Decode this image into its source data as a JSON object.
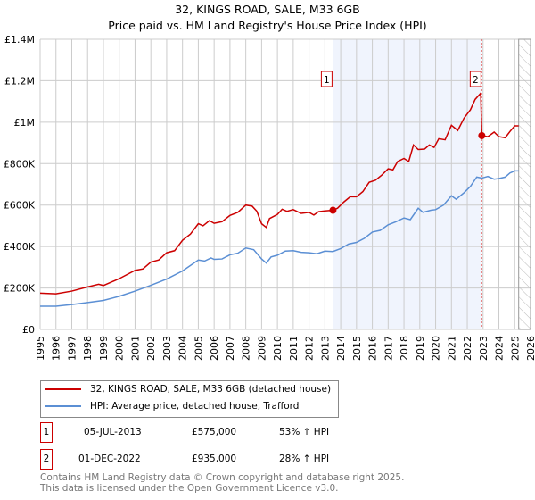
{
  "chart_data": {
    "type": "line",
    "title": "32, KINGS ROAD, SALE, M33 6GB",
    "subtitle": "Price paid vs. HM Land Registry's House Price Index (HPI)",
    "xlim": [
      1995,
      2026
    ],
    "ylim": [
      0,
      1400000
    ],
    "y_ticks": [
      {
        "v": 0,
        "l": "£0"
      },
      {
        "v": 200000,
        "l": "£200K"
      },
      {
        "v": 400000,
        "l": "£400K"
      },
      {
        "v": 600000,
        "l": "£600K"
      },
      {
        "v": 800000,
        "l": "£800K"
      },
      {
        "v": 1000000,
        "l": "£1M"
      },
      {
        "v": 1200000,
        "l": "£1.2M"
      },
      {
        "v": 1400000,
        "l": "£1.4M"
      }
    ],
    "x_ticks": [
      "1995",
      "1996",
      "1997",
      "1998",
      "1999",
      "2000",
      "2001",
      "2002",
      "2003",
      "2004",
      "2005",
      "2006",
      "2007",
      "2008",
      "2009",
      "2010",
      "2011",
      "2012",
      "2013",
      "2014",
      "2015",
      "2016",
      "2017",
      "2018",
      "2019",
      "2020",
      "2021",
      "2022",
      "2023",
      "2024",
      "2025",
      "2026"
    ],
    "grid": true,
    "shaded_range": [
      2013.51,
      2022.92
    ],
    "forecast_hatch_from": 2025.25,
    "series": [
      {
        "name": "32, KINGS ROAD, SALE, M33 6GB (detached house)",
        "color": "#cc0000",
        "points": [
          [
            1995,
            175000
          ],
          [
            1996,
            172000
          ],
          [
            1997,
            185000
          ],
          [
            1998,
            205000
          ],
          [
            1998.7,
            218000
          ],
          [
            1999,
            212000
          ],
          [
            2000,
            245000
          ],
          [
            2001,
            285000
          ],
          [
            2001.5,
            292000
          ],
          [
            2002,
            325000
          ],
          [
            2002.5,
            335000
          ],
          [
            2003,
            370000
          ],
          [
            2003.5,
            380000
          ],
          [
            2004,
            430000
          ],
          [
            2004.5,
            460000
          ],
          [
            2005,
            510000
          ],
          [
            2005.3,
            500000
          ],
          [
            2005.7,
            525000
          ],
          [
            2006,
            512000
          ],
          [
            2006.5,
            520000
          ],
          [
            2007,
            550000
          ],
          [
            2007.5,
            565000
          ],
          [
            2008,
            600000
          ],
          [
            2008.4,
            595000
          ],
          [
            2008.7,
            570000
          ],
          [
            2009.0,
            510000
          ],
          [
            2009.3,
            492000
          ],
          [
            2009.5,
            535000
          ],
          [
            2010,
            555000
          ],
          [
            2010.3,
            580000
          ],
          [
            2010.6,
            570000
          ],
          [
            2011,
            578000
          ],
          [
            2011.5,
            560000
          ],
          [
            2012,
            565000
          ],
          [
            2012.3,
            552000
          ],
          [
            2012.6,
            568000
          ],
          [
            2013,
            572000
          ],
          [
            2013.51,
            575000
          ],
          [
            2013.8,
            585000
          ],
          [
            2014.2,
            615000
          ],
          [
            2014.6,
            640000
          ],
          [
            2015,
            640000
          ],
          [
            2015.4,
            665000
          ],
          [
            2015.8,
            710000
          ],
          [
            2016.2,
            720000
          ],
          [
            2016.6,
            745000
          ],
          [
            2017,
            775000
          ],
          [
            2017.3,
            770000
          ],
          [
            2017.6,
            810000
          ],
          [
            2018,
            825000
          ],
          [
            2018.3,
            810000
          ],
          [
            2018.6,
            890000
          ],
          [
            2018.9,
            868000
          ],
          [
            2019.3,
            870000
          ],
          [
            2019.6,
            890000
          ],
          [
            2019.9,
            878000
          ],
          [
            2020.2,
            920000
          ],
          [
            2020.6,
            915000
          ],
          [
            2021.0,
            985000
          ],
          [
            2021.4,
            960000
          ],
          [
            2021.8,
            1020000
          ],
          [
            2022.2,
            1060000
          ],
          [
            2022.5,
            1110000
          ],
          [
            2022.85,
            1140000
          ],
          [
            2022.92,
            935000
          ],
          [
            2023.3,
            930000
          ],
          [
            2023.7,
            952000
          ],
          [
            2024.0,
            930000
          ],
          [
            2024.4,
            925000
          ],
          [
            2024.7,
            955000
          ],
          [
            2025.0,
            982000
          ],
          [
            2025.25,
            982000
          ]
        ]
      },
      {
        "name": "HPI: Average price, detached house, Trafford",
        "color": "#5b8fd4",
        "points": [
          [
            1995,
            112000
          ],
          [
            1996,
            112000
          ],
          [
            1997,
            120000
          ],
          [
            1998,
            130000
          ],
          [
            1999,
            140000
          ],
          [
            2000,
            160000
          ],
          [
            2001,
            185000
          ],
          [
            2002,
            213000
          ],
          [
            2003,
            243000
          ],
          [
            2004,
            282000
          ],
          [
            2005,
            335000
          ],
          [
            2005.4,
            330000
          ],
          [
            2005.8,
            345000
          ],
          [
            2006,
            338000
          ],
          [
            2006.5,
            340000
          ],
          [
            2007,
            360000
          ],
          [
            2007.5,
            368000
          ],
          [
            2008,
            393000
          ],
          [
            2008.5,
            385000
          ],
          [
            2009.0,
            340000
          ],
          [
            2009.3,
            320000
          ],
          [
            2009.6,
            350000
          ],
          [
            2010,
            358000
          ],
          [
            2010.5,
            378000
          ],
          [
            2011,
            380000
          ],
          [
            2011.5,
            372000
          ],
          [
            2012,
            370000
          ],
          [
            2012.5,
            365000
          ],
          [
            2013,
            378000
          ],
          [
            2013.51,
            376000
          ],
          [
            2014,
            390000
          ],
          [
            2014.5,
            412000
          ],
          [
            2015,
            420000
          ],
          [
            2015.5,
            440000
          ],
          [
            2016,
            470000
          ],
          [
            2016.5,
            478000
          ],
          [
            2017,
            505000
          ],
          [
            2017.5,
            520000
          ],
          [
            2018,
            538000
          ],
          [
            2018.4,
            530000
          ],
          [
            2018.9,
            585000
          ],
          [
            2019.2,
            565000
          ],
          [
            2019.7,
            575000
          ],
          [
            2020,
            578000
          ],
          [
            2020.5,
            600000
          ],
          [
            2021,
            645000
          ],
          [
            2021.3,
            628000
          ],
          [
            2021.8,
            660000
          ],
          [
            2022.2,
            690000
          ],
          [
            2022.6,
            735000
          ],
          [
            2022.92,
            730000
          ],
          [
            2023.3,
            738000
          ],
          [
            2023.7,
            725000
          ],
          [
            2024,
            728000
          ],
          [
            2024.4,
            735000
          ],
          [
            2024.7,
            755000
          ],
          [
            2025.0,
            765000
          ],
          [
            2025.25,
            765000
          ]
        ]
      }
    ],
    "sales": [
      {
        "n": "1",
        "x": 2013.51,
        "y": 575000,
        "date": "05-JUL-2013",
        "price": "£575,000",
        "delta": "53% ↑ HPI"
      },
      {
        "n": "2",
        "x": 2022.92,
        "y": 935000,
        "date": "01-DEC-2022",
        "price": "£935,000",
        "delta": "28% ↑ HPI"
      }
    ]
  },
  "footer": {
    "line1": "Contains HM Land Registry data © Crown copyright and database right 2025.",
    "line2": "This data is licensed under the Open Government Licence v3.0."
  }
}
